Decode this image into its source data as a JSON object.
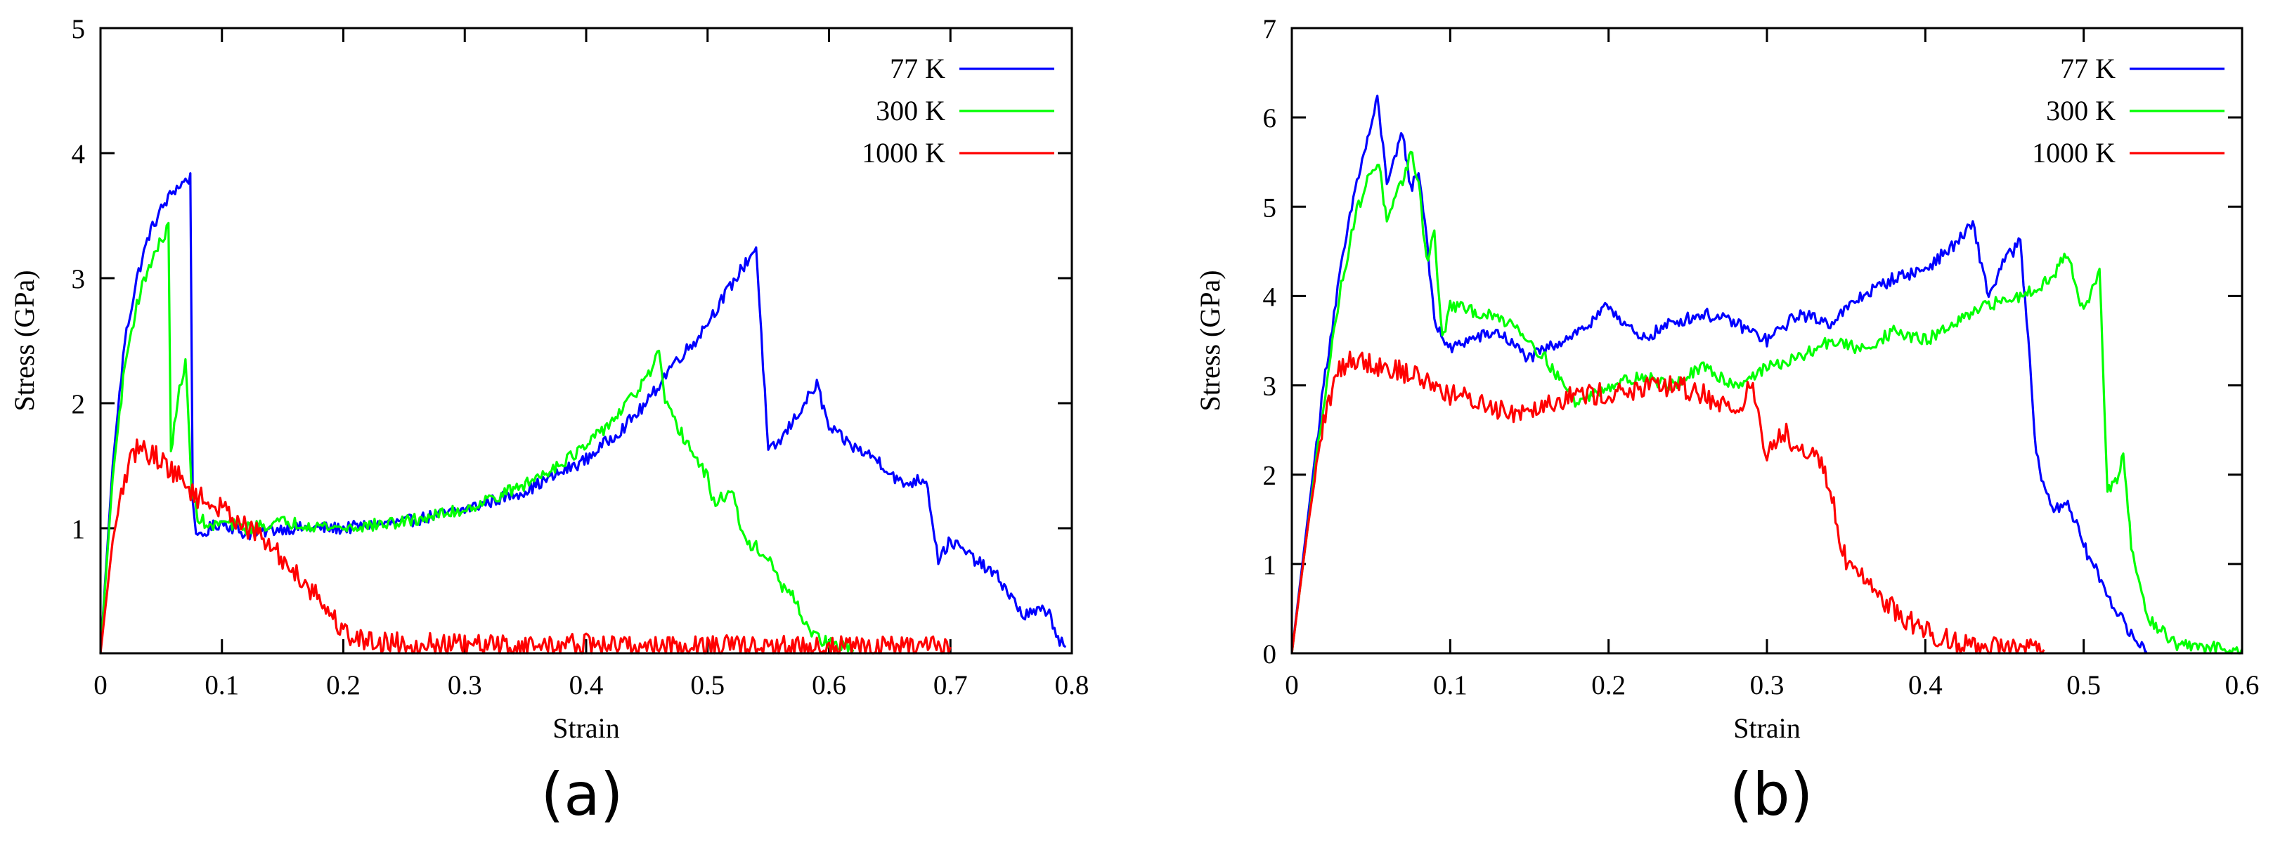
{
  "chart_data": [
    {
      "type": "line",
      "panel_label": "(a)",
      "xlabel": "Strain",
      "ylabel": "Stress (GPa)",
      "xlim": [
        0,
        0.8
      ],
      "ylim": [
        0,
        5
      ],
      "xticks": [
        0,
        0.1,
        0.2,
        0.3,
        0.4,
        0.5,
        0.6,
        0.7,
        0.8
      ],
      "xtick_labels": [
        "0",
        "0.1",
        "0.2",
        "0.3",
        "0.4",
        "0.5",
        "0.6",
        "0.7",
        "0.8"
      ],
      "yticks": [
        1,
        2,
        3,
        4,
        5
      ],
      "ytick_labels": [
        "1",
        "2",
        "3",
        "4",
        "5"
      ],
      "legend_position": "top-right",
      "series": [
        {
          "name": "77 K",
          "color": "#0000ff",
          "x": [
            0,
            0.01,
            0.02,
            0.03,
            0.04,
            0.05,
            0.06,
            0.07,
            0.074,
            0.076,
            0.08,
            0.09,
            0.1,
            0.12,
            0.15,
            0.2,
            0.25,
            0.3,
            0.35,
            0.4,
            0.43,
            0.45,
            0.47,
            0.49,
            0.51,
            0.53,
            0.54,
            0.55,
            0.56,
            0.58,
            0.59,
            0.6,
            0.62,
            0.64,
            0.66,
            0.68,
            0.69,
            0.7,
            0.72,
            0.74,
            0.76,
            0.78,
            0.79,
            0.795
          ],
          "y": [
            0,
            1.5,
            2.5,
            3.0,
            3.35,
            3.55,
            3.7,
            3.78,
            3.8,
            1.2,
            0.9,
            1.0,
            1.05,
            0.95,
            1.0,
            1.0,
            1.05,
            1.15,
            1.3,
            1.55,
            1.8,
            2.0,
            2.3,
            2.5,
            2.8,
            3.1,
            3.25,
            1.6,
            1.7,
            2.0,
            2.15,
            1.8,
            1.65,
            1.55,
            1.35,
            1.4,
            0.75,
            0.9,
            0.75,
            0.6,
            0.3,
            0.35,
            0.1,
            0.05
          ]
        },
        {
          "name": "300 K",
          "color": "#00ff00",
          "x": [
            0,
            0.01,
            0.02,
            0.03,
            0.04,
            0.05,
            0.056,
            0.058,
            0.065,
            0.07,
            0.075,
            0.08,
            0.09,
            0.1,
            0.12,
            0.15,
            0.2,
            0.25,
            0.3,
            0.35,
            0.4,
            0.43,
            0.45,
            0.46,
            0.465,
            0.47,
            0.5,
            0.505,
            0.52,
            0.53,
            0.54,
            0.55,
            0.56,
            0.57,
            0.58,
            0.59,
            0.6,
            0.61,
            0.62
          ],
          "y": [
            0,
            1.4,
            2.3,
            2.8,
            3.1,
            3.3,
            3.4,
            1.6,
            2.1,
            2.35,
            1.3,
            1.1,
            1.0,
            1.05,
            1.0,
            1.05,
            1.0,
            1.05,
            1.15,
            1.35,
            1.65,
            1.95,
            2.2,
            2.4,
            2.0,
            1.9,
            1.4,
            1.2,
            1.3,
            0.9,
            0.85,
            0.75,
            0.55,
            0.45,
            0.25,
            0.12,
            0.08,
            0.05,
            0.03
          ]
        },
        {
          "name": "1000 K",
          "color": "#ff0000",
          "x": [
            0,
            0.01,
            0.02,
            0.03,
            0.04,
            0.05,
            0.06,
            0.07,
            0.08,
            0.09,
            0.1,
            0.11,
            0.12,
            0.13,
            0.14,
            0.15,
            0.16,
            0.17,
            0.18,
            0.19,
            0.2,
            0.21,
            0.22,
            0.25,
            0.3,
            0.35,
            0.4,
            0.45,
            0.5,
            0.55,
            0.6,
            0.65,
            0.7
          ],
          "y": [
            0,
            0.9,
            1.4,
            1.65,
            1.6,
            1.55,
            1.45,
            1.35,
            1.25,
            1.2,
            1.15,
            1.1,
            1.0,
            0.95,
            0.85,
            0.75,
            0.65,
            0.55,
            0.45,
            0.3,
            0.18,
            0.12,
            0.1,
            0.08,
            0.06,
            0.06,
            0.07,
            0.06,
            0.06,
            0.05,
            0.05,
            0.05,
            0.05
          ]
        }
      ]
    },
    {
      "type": "line",
      "panel_label": "(b)",
      "xlabel": "Strain",
      "ylabel": "Stress (GPa)",
      "xlim": [
        0,
        0.6
      ],
      "ylim": [
        0,
        7
      ],
      "xticks": [
        0,
        0.1,
        0.2,
        0.3,
        0.4,
        0.5,
        0.6
      ],
      "xtick_labels": [
        "0",
        "0.1",
        "0.2",
        "0.3",
        "0.4",
        "0.5",
        "0.6"
      ],
      "yticks": [
        0,
        1,
        2,
        3,
        4,
        5,
        6,
        7
      ],
      "ytick_labels": [
        "0",
        "1",
        "2",
        "3",
        "4",
        "5",
        "6",
        "7"
      ],
      "legend_position": "top-right",
      "series": [
        {
          "name": "77 K",
          "color": "#0000ff",
          "x": [
            0,
            0.01,
            0.02,
            0.03,
            0.04,
            0.05,
            0.054,
            0.06,
            0.065,
            0.07,
            0.075,
            0.08,
            0.085,
            0.09,
            0.1,
            0.11,
            0.13,
            0.15,
            0.17,
            0.19,
            0.2,
            0.22,
            0.24,
            0.26,
            0.28,
            0.3,
            0.32,
            0.34,
            0.36,
            0.38,
            0.4,
            0.42,
            0.43,
            0.44,
            0.45,
            0.46,
            0.465,
            0.47,
            0.48,
            0.49,
            0.5,
            0.51,
            0.52,
            0.53,
            0.54
          ],
          "y": [
            0,
            1.5,
            3.0,
            4.2,
            5.2,
            5.9,
            6.2,
            5.3,
            5.5,
            5.85,
            5.2,
            5.4,
            4.7,
            3.7,
            3.4,
            3.5,
            3.6,
            3.3,
            3.5,
            3.7,
            3.9,
            3.5,
            3.7,
            3.8,
            3.7,
            3.5,
            3.8,
            3.7,
            4.0,
            4.2,
            4.3,
            4.6,
            4.8,
            4.0,
            4.4,
            4.6,
            3.5,
            2.2,
            1.6,
            1.7,
            1.2,
            0.85,
            0.5,
            0.2,
            0.02
          ]
        },
        {
          "name": "300 K",
          "color": "#00ff00",
          "x": [
            0,
            0.01,
            0.02,
            0.03,
            0.04,
            0.05,
            0.055,
            0.06,
            0.07,
            0.075,
            0.08,
            0.085,
            0.09,
            0.095,
            0.1,
            0.12,
            0.14,
            0.16,
            0.18,
            0.2,
            0.22,
            0.24,
            0.26,
            0.28,
            0.3,
            0.32,
            0.34,
            0.36,
            0.38,
            0.4,
            0.42,
            0.44,
            0.46,
            0.48,
            0.49,
            0.5,
            0.51,
            0.515,
            0.52,
            0.525,
            0.53,
            0.54,
            0.56,
            0.6
          ],
          "y": [
            0,
            1.4,
            2.8,
            4.0,
            4.9,
            5.4,
            5.5,
            4.8,
            5.3,
            5.6,
            5.3,
            4.4,
            4.7,
            3.5,
            3.9,
            3.8,
            3.7,
            3.3,
            2.8,
            3.0,
            3.1,
            3.0,
            3.2,
            3.0,
            3.2,
            3.3,
            3.5,
            3.4,
            3.6,
            3.5,
            3.7,
            3.9,
            4.0,
            4.2,
            4.5,
            3.8,
            4.3,
            1.8,
            1.9,
            2.2,
            1.2,
            0.4,
            0.08,
            0.05
          ]
        },
        {
          "name": "1000 K",
          "color": "#ff0000",
          "x": [
            0,
            0.01,
            0.02,
            0.03,
            0.04,
            0.06,
            0.08,
            0.1,
            0.12,
            0.14,
            0.16,
            0.18,
            0.2,
            0.22,
            0.24,
            0.26,
            0.28,
            0.29,
            0.3,
            0.31,
            0.32,
            0.33,
            0.34,
            0.35,
            0.36,
            0.37,
            0.38,
            0.39,
            0.4,
            0.42,
            0.44,
            0.46,
            0.475
          ],
          "y": [
            0,
            1.4,
            2.6,
            3.2,
            3.3,
            3.2,
            3.1,
            2.9,
            2.8,
            2.7,
            2.8,
            2.9,
            2.9,
            2.95,
            3.0,
            2.9,
            2.7,
            3.0,
            2.2,
            2.5,
            2.3,
            2.3,
            1.8,
            1.0,
            0.9,
            0.65,
            0.5,
            0.35,
            0.25,
            0.12,
            0.06,
            0.04,
            0.04
          ]
        }
      ]
    }
  ]
}
